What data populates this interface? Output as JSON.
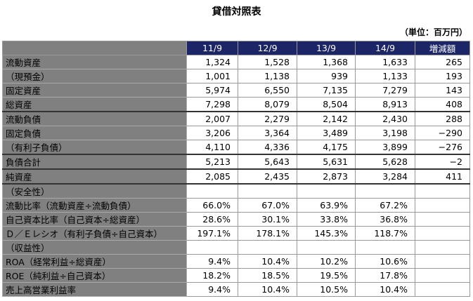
{
  "header": {
    "title": "貸借対照表",
    "unit": "（単位：百万円）"
  },
  "table": {
    "columns": [
      null,
      "11/9",
      "12/9",
      "13/9",
      "14/9",
      "増減額"
    ],
    "rows": [
      [
        "流動資産",
        "1,324",
        "1,528",
        "1,368",
        "1,633",
        "265"
      ],
      [
        "（現預金）",
        "1,001",
        "1,138",
        "939",
        "1,133",
        "193"
      ],
      [
        "固定資産",
        "5,974",
        "6,550",
        "7,135",
        "7,279",
        "143"
      ],
      [
        "総資産",
        "7,298",
        "8,079",
        "8,504",
        "8,913",
        "408"
      ],
      [
        "流動負債",
        "2,007",
        "2,279",
        "2,142",
        "2,430",
        "288"
      ],
      [
        "固定負債",
        "3,206",
        "3,364",
        "3,489",
        "3,198",
        "−290"
      ],
      [
        "（有利子負債）",
        "4,110",
        "4,336",
        "4,175",
        "3,899",
        "−276"
      ],
      [
        "負債合計",
        "5,213",
        "5,643",
        "5,631",
        "5,628",
        "−2"
      ],
      [
        "純資産",
        "2,085",
        "2,435",
        "2,873",
        "3,284",
        "411"
      ],
      [
        "（安全性）",
        null,
        null,
        null,
        null,
        null
      ],
      [
        "流動比率（流動資産÷流動負債）",
        "66.0%",
        "67.0%",
        "63.9%",
        "67.2%",
        null
      ],
      [
        "自己資本比率（自己資本÷総資産）",
        "28.6%",
        "30.1%",
        "33.8%",
        "36.8%",
        null
      ],
      [
        "Ｄ／Ｅレシオ（有利子負債÷自己資本）",
        "197.1%",
        "178.1%",
        "145.3%",
        "118.7%",
        null
      ],
      [
        "（収益性）",
        null,
        null,
        null,
        null,
        null
      ],
      [
        "ROA（経常利益÷総資産）",
        "9.4%",
        "10.4%",
        "10.2%",
        "10.6%",
        null
      ],
      [
        "ROE（純利益÷自己資本）",
        "18.2%",
        "18.5%",
        "19.5%",
        "17.8%",
        null
      ],
      [
        "売上高営業利益率",
        "9.4%",
        "10.4%",
        "10.5%",
        "10.4%",
        null
      ]
    ]
  }
}
